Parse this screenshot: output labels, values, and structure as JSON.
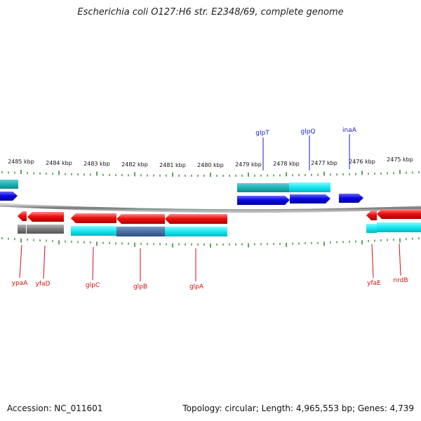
{
  "title": "Escherichia coli O127:H6 str. E2348/69, complete genome",
  "accession_text": "Accession: NC_011601",
  "topology_text": "Topology: circular; Length: 4,965,553 bp; Genes: 4,739",
  "kbp_labels": [
    "2485 kbp",
    "2484 kbp",
    "2483 kbp",
    "2482 kbp",
    "2481 kbp",
    "2480 kbp",
    "2479 kbp",
    "2478 kbp",
    "2477 kbp",
    "2476 kbp",
    "2475 kbp"
  ],
  "top_gene_labels": [
    "glpT",
    "glpQ",
    "inaA"
  ],
  "bottom_gene_labels": [
    "ypaA",
    "yfaD",
    "glpC",
    "glpB",
    "glpA",
    "yfaE",
    "nrdB"
  ],
  "colors": {
    "label_top": "#1a1acc",
    "label_bottom": "#cc1111",
    "tick": "#1a7a1a",
    "backbone": "#888888"
  }
}
